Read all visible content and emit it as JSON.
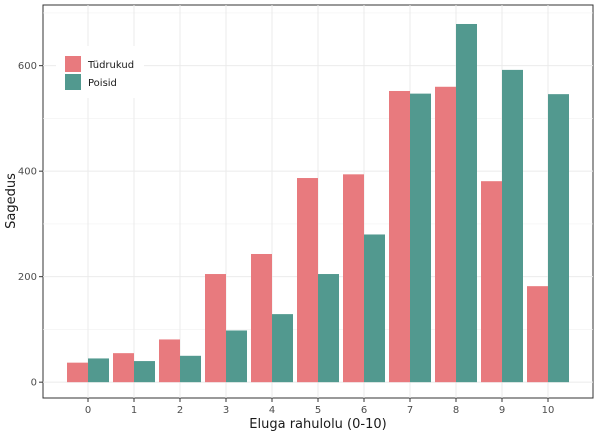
{
  "chart_data": {
    "type": "bar",
    "xlabel": "Eluga rahulolu (0-10)",
    "ylabel": "Sagedus",
    "categories": [
      "0",
      "1",
      "2",
      "3",
      "4",
      "5",
      "6",
      "7",
      "8",
      "9",
      "10"
    ],
    "series": [
      {
        "name": "Tüdrukud",
        "color": "#E87A7E",
        "values": [
          37,
          55,
          81,
          205,
          243,
          387,
          394,
          552,
          560,
          381,
          182
        ]
      },
      {
        "name": "Poisid",
        "color": "#52998F",
        "values": [
          45,
          40,
          50,
          98,
          129,
          205,
          280,
          547,
          679,
          592,
          546
        ]
      }
    ],
    "ylim": [
      -30,
      715
    ],
    "yticks": [
      0,
      200,
      400,
      600
    ],
    "grid": true,
    "legend_position": "top-left"
  }
}
